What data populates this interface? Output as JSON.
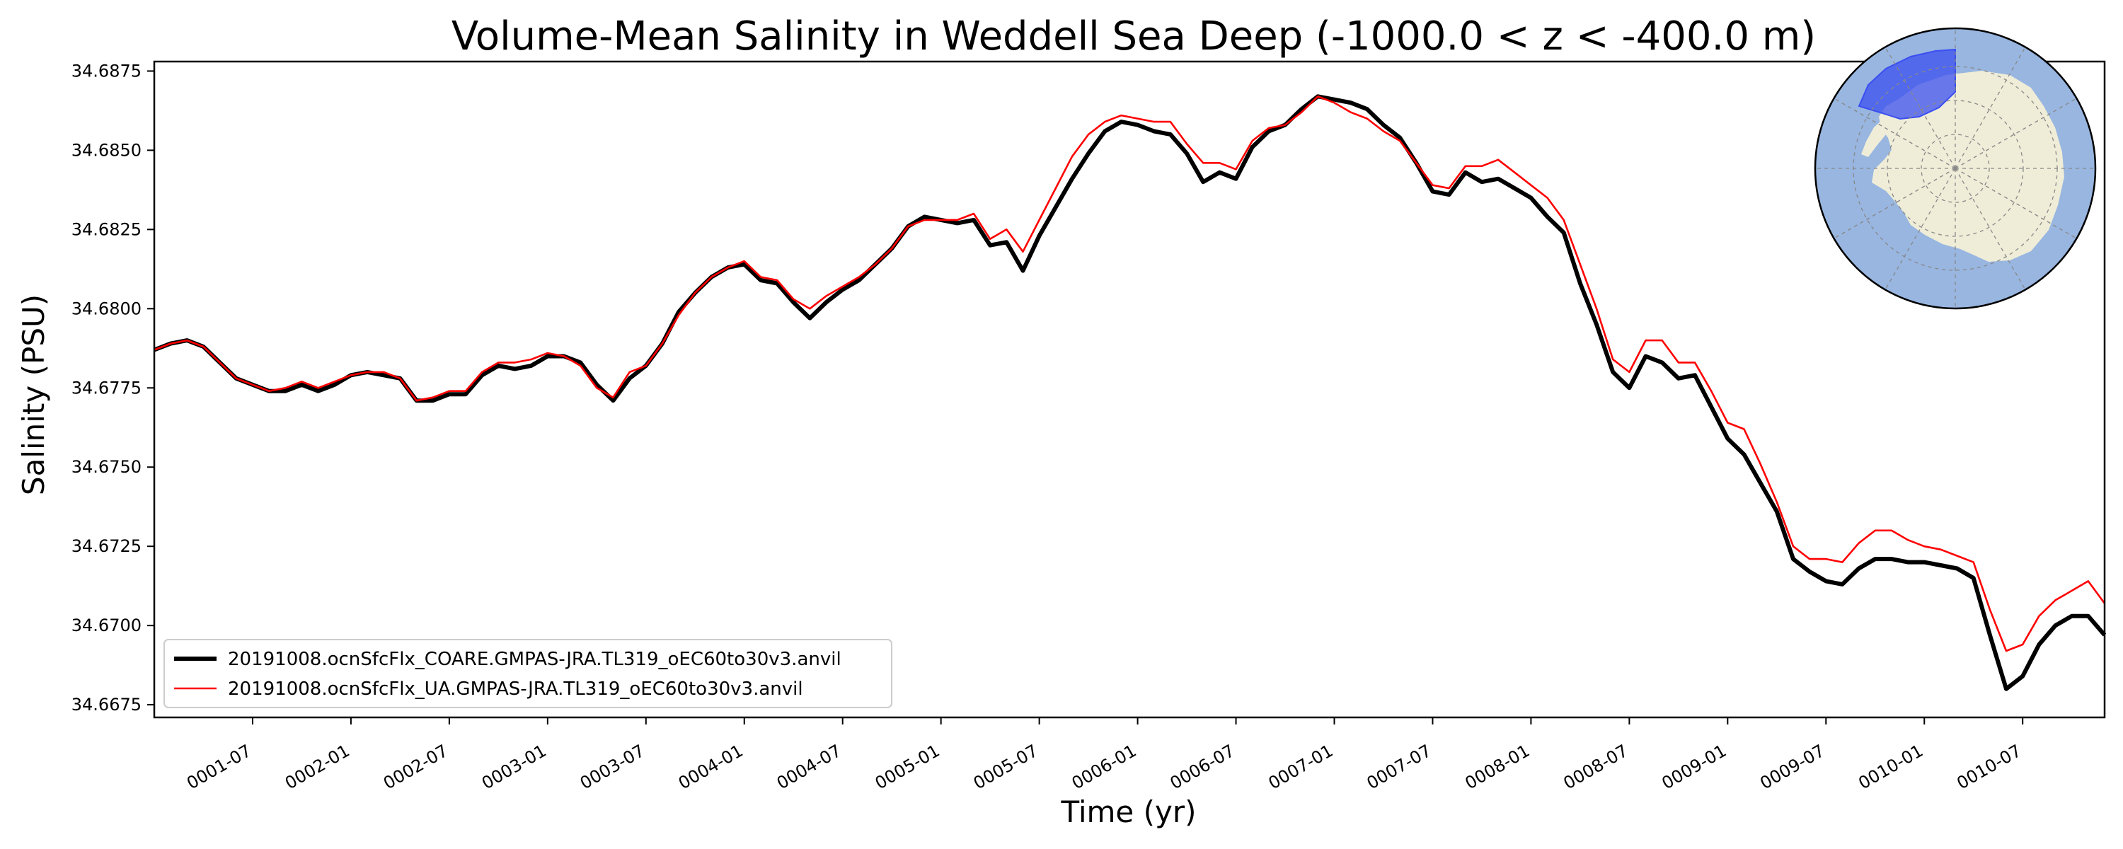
{
  "chart_data": {
    "type": "line",
    "title": "Volume-Mean Salinity in Weddell Sea Deep (-1000.0 < z < -400.0 m)",
    "xlabel": "Time (yr)",
    "ylabel": "Salinity (PSU)",
    "x_tick_labels": [
      "0001-07",
      "0002-01",
      "0002-07",
      "0003-01",
      "0003-07",
      "0004-01",
      "0004-07",
      "0005-01",
      "0005-07",
      "0006-01",
      "0006-07",
      "0007-01",
      "0007-07",
      "0008-01",
      "0008-07",
      "0009-01",
      "0009-07",
      "0010-01",
      "0010-07"
    ],
    "y_tick_labels": [
      "34.6675",
      "34.6700",
      "34.6725",
      "34.6750",
      "34.6775",
      "34.6800",
      "34.6825",
      "34.6850",
      "34.6875"
    ],
    "xlim": [
      1,
      120
    ],
    "ylim": [
      34.6671,
      34.6878
    ],
    "grid": false,
    "legend_position": "lower-left",
    "series": [
      {
        "name": "20191008.ocnSfcFlx_COARE.GMPAS-JRA.TL319_oEC60to30v3.anvil",
        "color": "#000000",
        "x": [
          1,
          2,
          3,
          4,
          5,
          6,
          7,
          8,
          9,
          10,
          11,
          12,
          13,
          14,
          15,
          16,
          17,
          18,
          19,
          20,
          21,
          22,
          23,
          24,
          25,
          26,
          27,
          28,
          29,
          30,
          31,
          32,
          33,
          34,
          35,
          36,
          37,
          38,
          39,
          40,
          41,
          42,
          43,
          44,
          45,
          46,
          47,
          48,
          49,
          50,
          51,
          52,
          53,
          54,
          55,
          56,
          57,
          58,
          59,
          60,
          61,
          62,
          63,
          64,
          65,
          66,
          67,
          68,
          69,
          70,
          71,
          72,
          73,
          74,
          75,
          76,
          77,
          78,
          79,
          80,
          81,
          82,
          83,
          84,
          85,
          86,
          87,
          88,
          89,
          90,
          91,
          92,
          93,
          94,
          95,
          96,
          97,
          98,
          99,
          100,
          101,
          102,
          103,
          104,
          105,
          106,
          107,
          108,
          109,
          110,
          111,
          112,
          113,
          114,
          115,
          116,
          117,
          118,
          119,
          120
        ],
        "values": [
          34.6787,
          34.6789,
          34.679,
          34.6788,
          34.6783,
          34.6778,
          34.6776,
          34.6774,
          34.6774,
          34.6776,
          34.6774,
          34.6776,
          34.6779,
          34.678,
          34.6779,
          34.6778,
          34.6771,
          34.6771,
          34.6773,
          34.6773,
          34.6779,
          34.6782,
          34.6781,
          34.6782,
          34.6785,
          34.6785,
          34.6783,
          34.6776,
          34.6771,
          34.6778,
          34.6782,
          34.6789,
          34.6799,
          34.6805,
          34.681,
          34.6813,
          34.6814,
          34.6809,
          34.6808,
          34.6802,
          34.6797,
          34.6802,
          34.6806,
          34.6809,
          34.6814,
          34.6819,
          34.6826,
          34.6829,
          34.6828,
          34.6827,
          34.6828,
          34.682,
          34.6821,
          34.6812,
          34.6823,
          34.6832,
          34.6841,
          34.6849,
          34.6856,
          34.6859,
          34.6858,
          34.6856,
          34.6855,
          34.6849,
          34.684,
          34.6843,
          34.6841,
          34.6851,
          34.6856,
          34.6858,
          34.6863,
          34.6867,
          34.6866,
          34.6865,
          34.6863,
          34.6858,
          34.6854,
          34.6846,
          34.6837,
          34.6836,
          34.6843,
          34.684,
          34.6841,
          34.6838,
          34.6835,
          34.6829,
          34.6824,
          34.6808,
          34.6795,
          34.678,
          34.6775,
          34.6785,
          34.6783,
          34.6778,
          34.6779,
          34.6769,
          34.6759,
          34.6754,
          34.6745,
          34.6736,
          34.6721,
          34.6717,
          34.6714,
          34.6713,
          34.6718,
          34.6721,
          34.6721,
          34.672,
          34.672,
          34.6719,
          34.6718,
          34.6715,
          34.6697,
          34.668,
          34.6684,
          34.6694,
          34.67,
          34.6703,
          34.6703,
          34.6697
        ],
        "line_width": 6
      },
      {
        "name": "20191008.ocnSfcFlx_UA.GMPAS-JRA.TL319_oEC60to30v3.anvil",
        "color": "#ff0000",
        "x": [
          1,
          2,
          3,
          4,
          5,
          6,
          7,
          8,
          9,
          10,
          11,
          12,
          13,
          14,
          15,
          16,
          17,
          18,
          19,
          20,
          21,
          22,
          23,
          24,
          25,
          26,
          27,
          28,
          29,
          30,
          31,
          32,
          33,
          34,
          35,
          36,
          37,
          38,
          39,
          40,
          41,
          42,
          43,
          44,
          45,
          46,
          47,
          48,
          49,
          50,
          51,
          52,
          53,
          54,
          55,
          56,
          57,
          58,
          59,
          60,
          61,
          62,
          63,
          64,
          65,
          66,
          67,
          68,
          69,
          70,
          71,
          72,
          73,
          74,
          75,
          76,
          77,
          78,
          79,
          80,
          81,
          82,
          83,
          84,
          85,
          86,
          87,
          88,
          89,
          90,
          91,
          92,
          93,
          94,
          95,
          96,
          97,
          98,
          99,
          100,
          101,
          102,
          103,
          104,
          105,
          106,
          107,
          108,
          109,
          110,
          111,
          112,
          113,
          114,
          115,
          116,
          117,
          118,
          119,
          120
        ],
        "values": [
          34.6787,
          34.6789,
          34.679,
          34.6788,
          34.6783,
          34.6778,
          34.6776,
          34.6774,
          34.6775,
          34.6777,
          34.6775,
          34.6777,
          34.6779,
          34.678,
          34.678,
          34.6778,
          34.6771,
          34.6772,
          34.6774,
          34.6774,
          34.678,
          34.6783,
          34.6783,
          34.6784,
          34.6786,
          34.6785,
          34.6782,
          34.6775,
          34.6772,
          34.678,
          34.6782,
          34.6789,
          34.6798,
          34.6805,
          34.681,
          34.6813,
          34.6815,
          34.681,
          34.6809,
          34.6803,
          34.68,
          34.6804,
          34.6807,
          34.681,
          34.6814,
          34.6819,
          34.6826,
          34.6828,
          34.6828,
          34.6828,
          34.683,
          34.6822,
          34.6825,
          34.6818,
          34.6828,
          34.6838,
          34.6848,
          34.6855,
          34.6859,
          34.6861,
          34.686,
          34.6859,
          34.6859,
          34.6852,
          34.6846,
          34.6846,
          34.6844,
          34.6853,
          34.6857,
          34.6858,
          34.6862,
          34.6867,
          34.6865,
          34.6862,
          34.686,
          34.6856,
          34.6853,
          34.6846,
          34.6839,
          34.6838,
          34.6845,
          34.6845,
          34.6847,
          34.6843,
          34.6839,
          34.6835,
          34.6828,
          34.6814,
          34.68,
          34.6784,
          34.678,
          34.679,
          34.679,
          34.6783,
          34.6783,
          34.6774,
          34.6764,
          34.6762,
          34.6751,
          34.6739,
          34.6725,
          34.6721,
          34.6721,
          34.672,
          34.6726,
          34.673,
          34.673,
          34.6727,
          34.6725,
          34.6724,
          34.6722,
          34.672,
          34.6705,
          34.6692,
          34.6694,
          34.6703,
          34.6708,
          34.6711,
          34.6714,
          34.6707
        ],
        "line_width": 2.6
      }
    ]
  },
  "inset_map": {
    "ocean_color": "#98b6e0",
    "land_color": "#efedd8",
    "region_color": "#3b4ff0"
  }
}
